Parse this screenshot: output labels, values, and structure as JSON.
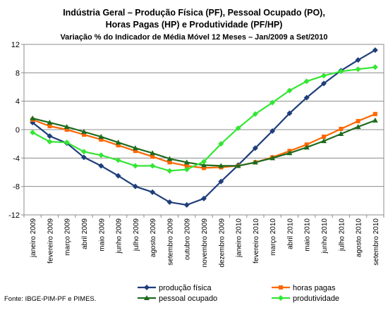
{
  "title_lines": [
    "Indústria Geral – Produção Física (PF), Pessoal Ocupado (PO),",
    "Horas Pagas (HP) e Produtividade (PF/HP)"
  ],
  "subtitle": "Variação % do Indicador de Média Móvel 12 Meses – Jan/2009 a Set/2010",
  "source": "Fonte: IBGE-PIM-PF e PIMES.",
  "chart_data": {
    "type": "line",
    "categories": [
      "janeiro 2009",
      "fevereiro 2009",
      "março 2009",
      "abril 2009",
      "maio 2009",
      "junho 2009",
      "julho 2009",
      "agosto 2009",
      "setembro 2009",
      "outubro 2009",
      "novembro 2009",
      "dezembro 2009",
      "janeiro 2010",
      "fevereiro 2010",
      "março 2010",
      "abril 2010",
      "maio 2010",
      "junho 2010",
      "julho 2010",
      "agosto 2010",
      "setembro 2010"
    ],
    "ylim": [
      -12,
      12
    ],
    "yticks": [
      12,
      8,
      4,
      0,
      -4,
      -8,
      -12
    ],
    "grid": "horizontal",
    "legend": "bottom",
    "series": [
      {
        "name": "produção física",
        "color": "#1F3E7A",
        "marker": "diamond",
        "values": [
          1.0,
          -0.9,
          -1.9,
          -3.9,
          -5.1,
          -6.5,
          -8.0,
          -8.8,
          -10.2,
          -10.6,
          -9.7,
          -7.3,
          -5.0,
          -2.6,
          -0.2,
          2.3,
          4.5,
          6.5,
          8.3,
          9.8,
          11.2
        ]
      },
      {
        "name": "horas pagas",
        "color": "#FF6600",
        "marker": "square",
        "values": [
          1.4,
          0.5,
          0.0,
          -0.7,
          -1.4,
          -2.2,
          -3.0,
          -3.8,
          -4.6,
          -5.1,
          -5.4,
          -5.3,
          -5.1,
          -4.6,
          -3.9,
          -3.0,
          -2.1,
          -1.0,
          0.1,
          1.2,
          2.2
        ]
      },
      {
        "name": "pessoal ocupado",
        "color": "#1E6B1E",
        "marker": "triangle",
        "values": [
          1.6,
          1.0,
          0.4,
          -0.3,
          -1.0,
          -1.8,
          -2.6,
          -3.3,
          -4.1,
          -4.6,
          -5.0,
          -5.1,
          -5.1,
          -4.6,
          -4.0,
          -3.3,
          -2.5,
          -1.6,
          -0.6,
          0.4,
          1.3
        ]
      },
      {
        "name": "produtividade",
        "color": "#33E633",
        "marker": "diamond",
        "values": [
          -0.4,
          -1.7,
          -1.8,
          -3.1,
          -3.6,
          -4.3,
          -5.1,
          -5.1,
          -5.8,
          -5.6,
          -4.5,
          -2.0,
          0.2,
          2.2,
          3.8,
          5.5,
          6.8,
          7.6,
          8.2,
          8.5,
          8.8
        ]
      }
    ]
  }
}
